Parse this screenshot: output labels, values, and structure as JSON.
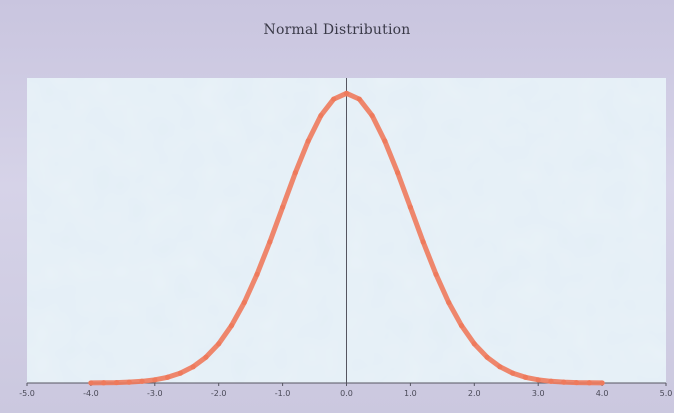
{
  "chart_data": {
    "type": "line",
    "title": "Normal Distribution",
    "xlabel": "",
    "ylabel": "",
    "xlim": [
      -5,
      5
    ],
    "ylim": [
      0,
      0.42
    ],
    "x_ticks": [
      -5,
      -4,
      -3,
      -2,
      -1,
      0,
      1,
      2,
      3,
      4,
      5
    ],
    "x_tick_labels": [
      "-5.0",
      "-4.0",
      "-3.0",
      "-2.0",
      "-1.0",
      "0.0",
      "1.0",
      "2.0",
      "3.0",
      "4.0",
      "5.0"
    ],
    "grid": false,
    "legend": "none",
    "series": [
      {
        "color": "#ee7a5c",
        "x": [
          -4.0,
          -3.8,
          -3.6,
          -3.4,
          -3.2,
          -3.0,
          -2.8,
          -2.6,
          -2.4,
          -2.2,
          -2.0,
          -1.8,
          -1.6,
          -1.4,
          -1.2,
          -1.0,
          -0.8,
          -0.6,
          -0.4,
          -0.2,
          0.0,
          0.2,
          0.4,
          0.6,
          0.8,
          1.0,
          1.2,
          1.4,
          1.6,
          1.8,
          2.0,
          2.2,
          2.4,
          2.6,
          2.8,
          3.0,
          3.2,
          3.4,
          3.6,
          3.8,
          4.0
        ],
        "y": [
          0.0001,
          0.0003,
          0.0006,
          0.0012,
          0.0024,
          0.0044,
          0.0079,
          0.0136,
          0.0224,
          0.0355,
          0.054,
          0.079,
          0.1109,
          0.1497,
          0.1942,
          0.242,
          0.2897,
          0.3332,
          0.3683,
          0.391,
          0.3989,
          0.391,
          0.3683,
          0.3332,
          0.2897,
          0.242,
          0.1942,
          0.1497,
          0.1109,
          0.079,
          0.054,
          0.0355,
          0.0224,
          0.0136,
          0.0079,
          0.0044,
          0.0024,
          0.0012,
          0.0006,
          0.0003,
          0.0001
        ]
      }
    ]
  },
  "colors": {
    "plot_background": "#e3eef6",
    "frame_background": "#cdc9e1",
    "axis": "#555560"
  }
}
